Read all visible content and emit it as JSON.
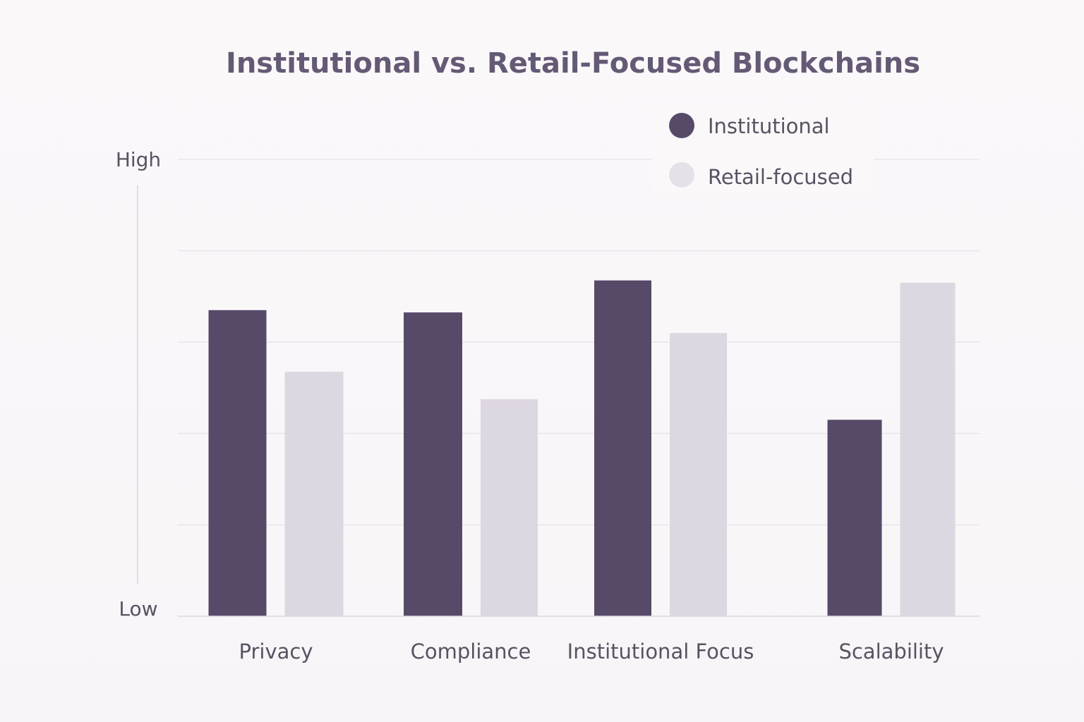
{
  "chart_data": {
    "type": "bar",
    "title": "Institutional vs. Retail-Focused Blockchains",
    "categories": [
      "Privacy",
      "Compliance",
      "Institutional Focus",
      "Scalability"
    ],
    "series": [
      {
        "name": "Institutional",
        "color": "#574a69",
        "values": [
          67,
          66.5,
          73.5,
          43
        ]
      },
      {
        "name": "Retail-focused",
        "color": "#ddd7e1",
        "values": [
          53.5,
          47.5,
          62,
          73
        ]
      }
    ],
    "ylim": [
      0,
      100
    ],
    "y_axis_labels": {
      "high": "High",
      "low": "Low"
    },
    "xlabel": "",
    "ylabel": "",
    "grid": true,
    "legend": "top-right"
  }
}
